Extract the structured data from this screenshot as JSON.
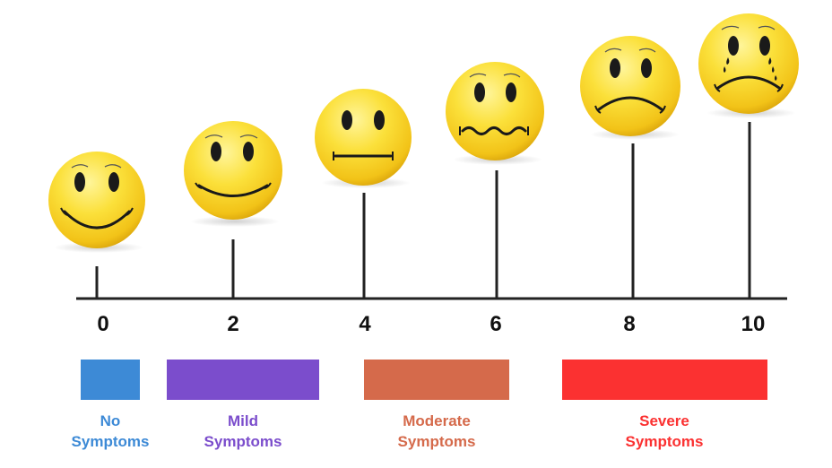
{
  "scale": {
    "ticks": [
      "0",
      "2",
      "4",
      "6",
      "8",
      "10"
    ]
  },
  "faces": [
    {
      "score": 0,
      "expression": "big-smile"
    },
    {
      "score": 2,
      "expression": "smile"
    },
    {
      "score": 4,
      "expression": "neutral"
    },
    {
      "score": 6,
      "expression": "wavy-worried"
    },
    {
      "score": 8,
      "expression": "frown"
    },
    {
      "score": 10,
      "expression": "crying-frown"
    }
  ],
  "categories": [
    {
      "line1": "No",
      "line2": "Symptoms",
      "color": "#3d8ad6"
    },
    {
      "line1": "Mild",
      "line2": "Symptoms",
      "color": "#7b4dcc"
    },
    {
      "line1": "Moderate",
      "line2": "Symptoms",
      "color": "#d56a4b"
    },
    {
      "line1": "Severe",
      "line2": "Symptoms",
      "color": "#fb3131"
    }
  ],
  "colors": {
    "face_light": "#fff36a",
    "face_mid": "#f7d21a",
    "face_dark": "#d19a00",
    "feature": "#1a1a1a",
    "axis": "#222222"
  }
}
